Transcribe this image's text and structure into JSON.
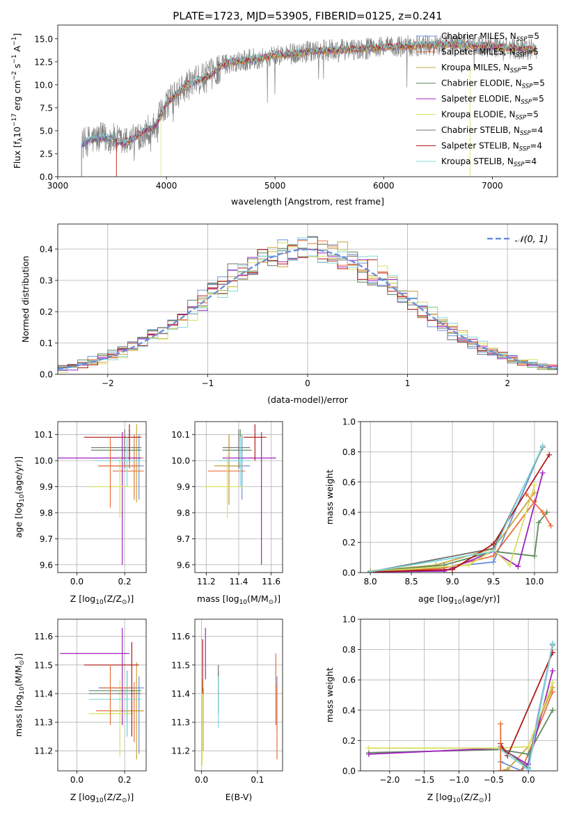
{
  "colors": [
    "#6a8fd8",
    "#e86f3a",
    "#c8a43c",
    "#5f8a5f",
    "#a020c0",
    "#d8e060",
    "#707070",
    "#b01818",
    "#7fd8de"
  ],
  "legend": {
    "labels": [
      "Chabrier MILES, N",
      "Salpeter MILES, N",
      "Kroupa MILES, N",
      "Chabrier ELODIE, N",
      "Salpeter ELODIE, N",
      "Kroupa ELODIE, N",
      "Chabrier STELIB, N",
      "Salpeter STELIB, N",
      "Kroupa STELIB, N"
    ],
    "sub": "SSP",
    "counts": [
      "=5",
      "=5",
      "=5",
      "=5",
      "=5",
      "=5",
      "=4",
      "=4",
      "=4"
    ]
  },
  "chart_data": [
    {
      "id": "spectrum",
      "type": "line",
      "title": "PLATE=1723, MJD=53905, FIBERID=0125, z=0.241",
      "xlabel": "wavelength [Angstrom, rest frame]",
      "ylabel": "Flux [f",
      "ylabel_parts": [
        "λ",
        "10",
        "−17",
        " erg cm",
        "−2",
        " s",
        "−1",
        " A",
        "−1",
        "]"
      ],
      "xlim": [
        3000,
        7600
      ],
      "ylim": [
        0,
        16.5
      ],
      "xticks": [
        3000,
        4000,
        5000,
        6000,
        7000
      ],
      "xtick_labels": [
        "3000",
        "4000",
        "5000",
        "6000",
        "7000"
      ],
      "yticks": [
        0,
        2.5,
        5,
        7.5,
        10,
        12.5,
        15
      ],
      "ytick_labels": [
        "0.0",
        "2.5",
        "5.0",
        "7.5",
        "10.0",
        "12.5",
        "15.0"
      ],
      "x": [
        3220,
        3300,
        3400,
        3500,
        3600,
        3700,
        3800,
        3900,
        4000,
        4100,
        4200,
        4300,
        4400,
        4500,
        4600,
        4800,
        5000,
        5200,
        5400,
        5600,
        5800,
        6000,
        6200,
        6400,
        6600,
        6800,
        7000,
        7200,
        7400
      ],
      "y": [
        3.5,
        4.0,
        4.2,
        4.2,
        3.6,
        4.2,
        5.0,
        5.5,
        8.0,
        9.0,
        10.0,
        10.5,
        11.0,
        12.0,
        12.5,
        12.8,
        13.2,
        13.4,
        13.7,
        13.8,
        13.9,
        14.1,
        14.2,
        14.3,
        14.4,
        14.3,
        14.2,
        14.0,
        13.8
      ]
    },
    {
      "id": "residuals",
      "type": "step",
      "xlabel": "(data-model)/error",
      "ylabel": "Normed distribution",
      "xlim": [
        -2.5,
        2.5
      ],
      "ylim": [
        0,
        0.48
      ],
      "xticks": [
        -2,
        -1,
        0,
        1,
        2
      ],
      "xtick_labels": [
        "−2",
        "−1",
        "0",
        "1",
        "2"
      ],
      "yticks": [
        0,
        0.1,
        0.2,
        0.3,
        0.4
      ],
      "ytick_labels": [
        "0.0",
        "0.1",
        "0.2",
        "0.3",
        "0.4"
      ],
      "bin_width": 0.1,
      "gaussian_label": "𝒩(0, 1)",
      "gaussian_color": "#6a8fd8"
    },
    {
      "id": "age-vs-z",
      "type": "errorbar",
      "xlabel": "Z [log",
      "xlabel_parts": [
        "10",
        "(Z/Z",
        "⊙",
        ")]"
      ],
      "ylabel": "age  [log",
      "ylabel_parts": [
        "10",
        "(age/yr)]"
      ],
      "xlim": [
        -0.08,
        0.29
      ],
      "ylim": [
        9.57,
        10.15
      ],
      "xticks": [
        0,
        0.2
      ],
      "xtick_labels": [
        "0.0",
        "0.2"
      ],
      "yticks": [
        9.6,
        9.7,
        9.8,
        9.9,
        10.0,
        10.1
      ],
      "ytick_labels": [
        "9.6",
        "9.7",
        "9.8",
        "9.9",
        "10.0",
        "10.1"
      ],
      "points": [
        {
          "c": 0,
          "x": 0.26,
          "xe": [
            0.09,
            0.28
          ],
          "y": 9.98,
          "ye": [
            9.85,
            10.1
          ]
        },
        {
          "c": 1,
          "x": 0.24,
          "xe": [
            0.15,
            0.28
          ],
          "y": 9.96,
          "ye": [
            9.85,
            10.1
          ]
        },
        {
          "c": 2,
          "x": 0.25,
          "xe": [
            0.12,
            0.28
          ],
          "y": 10.01,
          "ye": [
            9.84,
            10.14
          ]
        },
        {
          "c": 3,
          "x": 0.22,
          "xe": [
            0.06,
            0.27
          ],
          "y": 10.04,
          "ye": [
            9.97,
            10.12
          ]
        },
        {
          "c": 4,
          "x": 0.19,
          "xe": [
            -0.08,
            0.27
          ],
          "y": 10.01,
          "ye": [
            9.6,
            10.11
          ]
        },
        {
          "c": 5,
          "x": 0.18,
          "xe": [
            0.05,
            0.24
          ],
          "y": 9.9,
          "ye": [
            9.78,
            10.02
          ]
        },
        {
          "c": 6,
          "x": 0.2,
          "xe": [
            0.06,
            0.27
          ],
          "y": 10.05,
          "ye": [
            9.97,
            10.12
          ]
        },
        {
          "c": 7,
          "x": 0.22,
          "xe": [
            0.03,
            0.27
          ],
          "y": 10.09,
          "ye": [
            10.0,
            10.14
          ]
        },
        {
          "c": 8,
          "x": 0.21,
          "xe": [
            0.07,
            0.27
          ],
          "y": 10.0,
          "ye": [
            9.9,
            10.09
          ]
        },
        {
          "c": 1,
          "x": 0.14,
          "xe": [
            0.09,
            0.26
          ],
          "y": 9.98,
          "ye": [
            9.82,
            10.09
          ]
        }
      ]
    },
    {
      "id": "age-vs-mass",
      "type": "errorbar",
      "xlabel": "mass [log",
      "xlabel_parts": [
        "10",
        "(M/M",
        "⊙",
        ")]"
      ],
      "ylabel": "",
      "xlim": [
        11.13,
        11.67
      ],
      "ylim": [
        9.57,
        10.15
      ],
      "xticks": [
        11.2,
        11.4,
        11.6
      ],
      "xtick_labels": [
        "11.2",
        "11.4",
        "11.6"
      ],
      "yticks": [
        9.6,
        9.7,
        9.8,
        9.9,
        10.0,
        10.1
      ],
      "ytick_labels": [
        "9.6",
        "9.7",
        "9.8",
        "9.9",
        "10.0",
        "10.1"
      ],
      "points": [
        {
          "c": 0,
          "x": 11.42,
          "xe": [
            11.3,
            11.47
          ],
          "y": 9.98,
          "ye": [
            9.85,
            10.1
          ]
        },
        {
          "c": 1,
          "x": 11.34,
          "xe": [
            11.21,
            11.44
          ],
          "y": 9.96,
          "ye": [
            9.84,
            10.1
          ]
        },
        {
          "c": 2,
          "x": 11.34,
          "xe": [
            11.25,
            11.43
          ],
          "y": 9.98,
          "ye": [
            9.83,
            10.1
          ]
        },
        {
          "c": 3,
          "x": 11.41,
          "xe": [
            11.3,
            11.48
          ],
          "y": 10.04,
          "ye": [
            9.97,
            10.12
          ]
        },
        {
          "c": 4,
          "x": 11.54,
          "xe": [
            11.3,
            11.63
          ],
          "y": 10.01,
          "ye": [
            9.6,
            10.11
          ]
        },
        {
          "c": 5,
          "x": 11.33,
          "xe": [
            11.18,
            11.43
          ],
          "y": 9.9,
          "ye": [
            9.78,
            10.02
          ]
        },
        {
          "c": 6,
          "x": 11.4,
          "xe": [
            11.3,
            11.47
          ],
          "y": 10.05,
          "ye": [
            9.97,
            10.12
          ]
        },
        {
          "c": 7,
          "x": 11.5,
          "xe": [
            11.43,
            11.57
          ],
          "y": 10.09,
          "ye": [
            10.0,
            10.14
          ]
        },
        {
          "c": 8,
          "x": 11.41,
          "xe": [
            11.27,
            11.47
          ],
          "y": 10.0,
          "ye": [
            9.9,
            10.09
          ]
        }
      ]
    },
    {
      "id": "mass-weight-vs-age",
      "type": "line",
      "xlabel": "age  [log",
      "xlabel_parts": [
        "10",
        "(age/yr)]"
      ],
      "ylabel": "mass weight",
      "xlim": [
        7.88,
        10.28
      ],
      "ylim": [
        0,
        1
      ],
      "xticks": [
        8.0,
        8.5,
        9.0,
        9.5,
        10.0
      ],
      "xtick_labels": [
        "8.0",
        "8.5",
        "9.0",
        "9.5",
        "10.0"
      ],
      "yticks": [
        0,
        0.2,
        0.4,
        0.6,
        0.8,
        1.0
      ],
      "ytick_labels": [
        "0.0",
        "0.2",
        "0.4",
        "0.6",
        "0.8",
        "1.0"
      ],
      "series": [
        {
          "c": 0,
          "x": [
            8.0,
            8.6,
            9.0,
            9.5,
            10.1
          ],
          "y": [
            0.005,
            0.02,
            0.04,
            0.07,
            0.84
          ]
        },
        {
          "c": 1,
          "x": [
            8.3,
            8.9,
            9.5,
            10.0
          ],
          "y": [
            0.01,
            0.03,
            0.11,
            0.47
          ]
        },
        {
          "c": 2,
          "x": [
            8.0,
            8.8,
            9.5,
            10.0
          ],
          "y": [
            0.01,
            0.05,
            0.16,
            0.53
          ]
        },
        {
          "c": 3,
          "x": [
            8.0,
            8.9,
            9.5,
            10.0,
            10.05,
            10.15
          ],
          "y": [
            0.005,
            0.05,
            0.14,
            0.11,
            0.33,
            0.4
          ]
        },
        {
          "c": 4,
          "x": [
            8.0,
            8.9,
            9.5,
            9.8,
            10.1
          ],
          "y": [
            0.005,
            0.01,
            0.14,
            0.04,
            0.66
          ]
        },
        {
          "c": 5,
          "x": [
            8.0,
            9.2,
            9.5,
            9.7,
            10.0
          ],
          "y": [
            0.005,
            0.05,
            0.15,
            0.05,
            0.58
          ]
        },
        {
          "c": 6,
          "x": [
            8.0,
            9.5,
            10.1
          ],
          "y": [
            0.005,
            0.16,
            0.83
          ]
        },
        {
          "c": 7,
          "x": [
            8.0,
            9.0,
            9.5,
            10.18
          ],
          "y": [
            0.005,
            0.02,
            0.19,
            0.78
          ]
        },
        {
          "c": 8,
          "x": [
            8.0,
            9.5,
            10.1
          ],
          "y": [
            0.005,
            0.14,
            0.84
          ]
        },
        {
          "c": 1,
          "x": [
            9.9,
            10.1,
            10.2
          ],
          "y": [
            0.52,
            0.4,
            0.31
          ]
        }
      ]
    },
    {
      "id": "mass-vs-z",
      "type": "errorbar",
      "xlabel": "Z [log",
      "xlabel_parts": [
        "10",
        "(Z/Z",
        "⊙",
        ")]"
      ],
      "ylabel": "mass [log",
      "ylabel_parts": [
        "10",
        "(M/M",
        "⊙",
        ")]"
      ],
      "xlim": [
        -0.08,
        0.29
      ],
      "ylim": [
        11.13,
        11.66
      ],
      "xticks": [
        0,
        0.2
      ],
      "xtick_labels": [
        "0.0",
        "0.2"
      ],
      "yticks": [
        11.2,
        11.3,
        11.4,
        11.5,
        11.6
      ],
      "ytick_labels": [
        "11.2",
        "11.3",
        "11.4",
        "11.5",
        "11.6"
      ],
      "points": [
        {
          "c": 0,
          "x": 0.26,
          "xe": [
            0.09,
            0.28
          ],
          "y": 11.42,
          "ye": [
            11.19,
            11.46
          ]
        },
        {
          "c": 1,
          "x": 0.24,
          "xe": [
            0.08,
            0.28
          ],
          "y": 11.34,
          "ye": [
            11.23,
            11.44
          ]
        },
        {
          "c": 2,
          "x": 0.25,
          "xe": [
            0.13,
            0.28
          ],
          "y": 11.34,
          "ye": [
            11.17,
            11.51
          ]
        },
        {
          "c": 3,
          "x": 0.21,
          "xe": [
            0.05,
            0.27
          ],
          "y": 11.41,
          "ye": [
            11.3,
            11.48
          ]
        },
        {
          "c": 4,
          "x": 0.19,
          "xe": [
            -0.07,
            0.22
          ],
          "y": 11.54,
          "ye": [
            11.29,
            11.63
          ]
        },
        {
          "c": 5,
          "x": 0.18,
          "xe": [
            0.05,
            0.24
          ],
          "y": 11.33,
          "ye": [
            11.18,
            11.45
          ]
        },
        {
          "c": 6,
          "x": 0.21,
          "xe": [
            0.05,
            0.27
          ],
          "y": 11.4,
          "ye": [
            11.25,
            11.48
          ]
        },
        {
          "c": 7,
          "x": 0.23,
          "xe": [
            0.03,
            0.26
          ],
          "y": 11.5,
          "ye": [
            11.25,
            11.58
          ]
        },
        {
          "c": 8,
          "x": 0.21,
          "xe": [
            0.05,
            0.27
          ],
          "y": 11.38,
          "ye": [
            11.25,
            11.48
          ]
        },
        {
          "c": 1,
          "x": 0.14,
          "xe": [
            0.1,
            0.23
          ],
          "y": 11.42,
          "ye": [
            11.29,
            11.5
          ]
        }
      ]
    },
    {
      "id": "mass-vs-ebv",
      "type": "errorbar",
      "xlabel": "E(B-V)",
      "ylabel": "",
      "xlim": [
        -0.012,
        0.145
      ],
      "ylim": [
        11.13,
        11.66
      ],
      "xticks": [
        0,
        0.1
      ],
      "xtick_labels": [
        "0.0",
        "0.1"
      ],
      "yticks": [
        11.2,
        11.3,
        11.4,
        11.5,
        11.6
      ],
      "ytick_labels": [
        "11.2",
        "11.3",
        "11.4",
        "11.5",
        "11.6"
      ],
      "points": [
        {
          "c": 0,
          "x": 0.135,
          "y": 11.42,
          "ye": [
            11.27,
            11.46
          ]
        },
        {
          "c": 1,
          "x": 0.135,
          "y": 11.34,
          "ye": [
            11.17,
            11.43
          ]
        },
        {
          "c": 2,
          "x": 0.003,
          "y": 11.34,
          "ye": [
            11.2,
            11.42
          ]
        },
        {
          "c": 3,
          "x": 0.03,
          "y": 11.41,
          "ye": [
            11.33,
            11.48
          ]
        },
        {
          "c": 4,
          "x": 0.007,
          "y": 11.54,
          "ye": [
            11.45,
            11.63
          ]
        },
        {
          "c": 5,
          "x": 0.001,
          "y": 11.33,
          "ye": [
            11.15,
            11.45
          ]
        },
        {
          "c": 6,
          "x": 0.03,
          "y": 11.4,
          "ye": [
            11.33,
            11.5
          ]
        },
        {
          "c": 7,
          "x": 0.002,
          "y": 11.5,
          "ye": [
            11.4,
            11.59
          ]
        },
        {
          "c": 8,
          "x": 0.03,
          "y": 11.38,
          "ye": [
            11.28,
            11.46
          ]
        },
        {
          "c": 1,
          "x": 0.133,
          "y": 11.45,
          "ye": [
            11.29,
            11.54
          ]
        }
      ]
    },
    {
      "id": "mass-weight-vs-z",
      "type": "line",
      "xlabel": "Z [log",
      "xlabel_parts": [
        "10",
        "(Z/Z",
        "⊙",
        ")]"
      ],
      "ylabel": "mass weight",
      "xlim": [
        -2.42,
        0.42
      ],
      "ylim": [
        0,
        1
      ],
      "xticks": [
        -2.0,
        -1.5,
        -1.0,
        -0.5,
        0.0
      ],
      "xtick_labels": [
        "−2.0",
        "−1.5",
        "−1.0",
        "−0.5",
        "0.0"
      ],
      "yticks": [
        0,
        0.2,
        0.4,
        0.6,
        0.8,
        1.0
      ],
      "ytick_labels": [
        "0.0",
        "0.2",
        "0.4",
        "0.6",
        "0.8",
        "1.0"
      ],
      "series": [
        {
          "c": 0,
          "x": [
            -0.4,
            -0.1,
            0.0,
            0.35
          ],
          "y": [
            0.06,
            0.0,
            0.05,
            0.84
          ]
        },
        {
          "c": 1,
          "x": [
            -0.4,
            -0.1,
            0.35
          ],
          "y": [
            0.0,
            0.0,
            0.52
          ]
        },
        {
          "c": 2,
          "x": [
            -0.4,
            -0.3,
            0.0,
            0.35
          ],
          "y": [
            0.0,
            0.01,
            0.16,
            0.55
          ]
        },
        {
          "c": 3,
          "x": [
            -2.3,
            -0.4,
            0.0,
            0.35
          ],
          "y": [
            0.12,
            0.14,
            0.11,
            0.4
          ]
        },
        {
          "c": 4,
          "x": [
            -2.3,
            -0.4,
            0.0,
            0.35
          ],
          "y": [
            0.11,
            0.15,
            0.04,
            0.66
          ]
        },
        {
          "c": 5,
          "x": [
            -2.3,
            -0.4,
            0.0,
            0.35
          ],
          "y": [
            0.15,
            0.15,
            0.16,
            0.58
          ]
        },
        {
          "c": 6,
          "x": [
            -0.4,
            0.0,
            0.35
          ],
          "y": [
            0.16,
            0.02,
            0.83
          ]
        },
        {
          "c": 7,
          "x": [
            -0.4,
            -0.3,
            0.35
          ],
          "y": [
            0.18,
            0.1,
            0.78
          ]
        },
        {
          "c": 8,
          "x": [
            -0.4,
            0.0,
            0.35
          ],
          "y": [
            0.14,
            0.01,
            0.84
          ]
        },
        {
          "c": 1,
          "x": [
            -0.4,
            -0.4
          ],
          "y": [
            0.31,
            0.0
          ]
        }
      ]
    }
  ]
}
